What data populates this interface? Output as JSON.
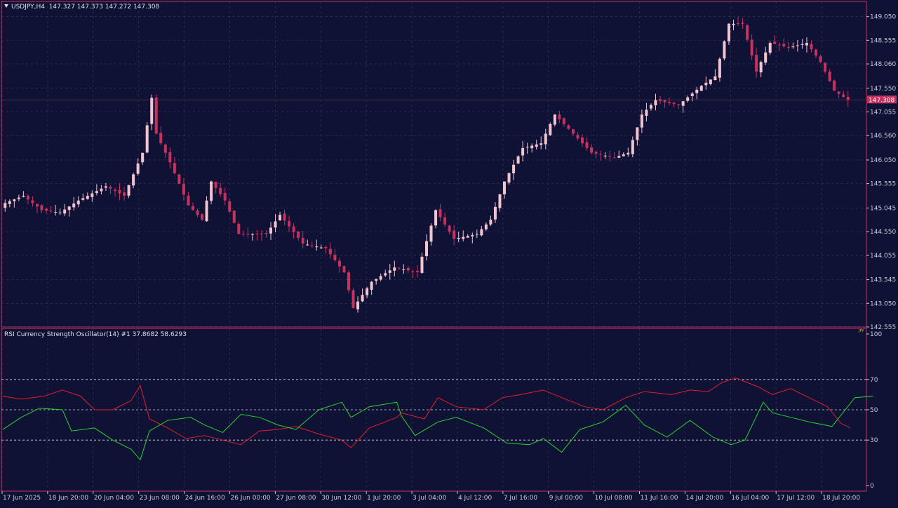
{
  "colors": {
    "background": "#0f1235",
    "grid": "#3a3d5e",
    "axis_text": "#c9c6d6",
    "bull_candle": "#f2c4cf",
    "bear_candle": "#c8305e",
    "frame": "#c8305e",
    "price_tag_bg": "#c8305e",
    "oscillator_red": "#e01f2a",
    "oscillator_green": "#28d22a",
    "level_line": "#d9d9e0"
  },
  "main_chart": {
    "symbol_label": "USDJPY,H4",
    "ohlc_label": "147.327 147.373 147.272 147.308",
    "dropdown_icon": "triangle-down-icon",
    "current_price": "147.308",
    "price_min": 142.555,
    "price_max": 149.28,
    "price_ticks": [
      "149.050",
      "148.555",
      "148.060",
      "147.550",
      "147.055",
      "146.560",
      "146.050",
      "145.555",
      "145.045",
      "144.550",
      "144.055",
      "143.545",
      "143.050",
      "142.555"
    ]
  },
  "time_axis": {
    "labels": [
      "17 Jun 2025",
      "18 Jun 20:00",
      "20 Jun 04:00",
      "23 Jun 08:00",
      "24 Jun 16:00",
      "26 Jun 00:00",
      "27 Jun 08:00",
      "30 Jun 12:00",
      "1 Jul 20:00",
      "3 Jul 04:00",
      "4 Jul 12:00",
      "7 Jul 16:00",
      "9 Jul 00:00",
      "10 Jul 08:00",
      "11 Jul 16:00",
      "14 Jul 20:00",
      "16 Jul 04:00",
      "17 Jul 12:00",
      "18 Jul 20:00"
    ]
  },
  "indicator": {
    "label": "RSI Currency Strength Oscillator(14) #1 37.8682 58.6293",
    "badge": "JPY",
    "scale_labels": [
      "100",
      "70",
      "50",
      "30",
      "0"
    ],
    "levels": [
      70,
      50,
      30
    ]
  },
  "chart_data": [
    {
      "type": "candlestick",
      "title": "USDJPY,H4",
      "y_range": [
        142.555,
        149.28
      ],
      "x_labels": [
        "17 Jun 2025",
        "18 Jun 20:00",
        "20 Jun 04:00",
        "23 Jun 08:00",
        "24 Jun 16:00",
        "26 Jun 00:00",
        "27 Jun 08:00",
        "30 Jun 12:00",
        "1 Jul 20:00",
        "3 Jul 04:00",
        "4 Jul 12:00",
        "7 Jul 16:00",
        "9 Jul 00:00",
        "10 Jul 08:00",
        "11 Jul 16:00",
        "14 Jul 20:00",
        "16 Jul 04:00",
        "17 Jul 12:00",
        "18 Jul 20:00"
      ],
      "close_path_keypoints": [
        [
          0,
          145.15
        ],
        [
          4,
          145.3
        ],
        [
          8,
          145.0
        ],
        [
          12,
          144.95
        ],
        [
          16,
          145.2
        ],
        [
          22,
          145.5
        ],
        [
          26,
          145.3
        ],
        [
          30,
          146.2
        ],
        [
          32,
          147.35
        ],
        [
          33,
          146.6
        ],
        [
          36,
          146.0
        ],
        [
          40,
          145.1
        ],
        [
          43,
          144.8
        ],
        [
          45,
          145.6
        ],
        [
          48,
          145.2
        ],
        [
          51,
          144.5
        ],
        [
          57,
          144.5
        ],
        [
          60,
          144.9
        ],
        [
          65,
          144.3
        ],
        [
          70,
          144.2
        ],
        [
          74,
          143.7
        ],
        [
          76,
          142.95
        ],
        [
          80,
          143.5
        ],
        [
          85,
          143.8
        ],
        [
          90,
          143.7
        ],
        [
          94,
          145.0
        ],
        [
          98,
          144.4
        ],
        [
          103,
          144.5
        ],
        [
          106,
          144.8
        ],
        [
          109,
          145.6
        ],
        [
          113,
          146.3
        ],
        [
          117,
          146.4
        ],
        [
          120,
          147.0
        ],
        [
          124,
          146.6
        ],
        [
          128,
          146.2
        ],
        [
          133,
          146.1
        ],
        [
          136,
          146.2
        ],
        [
          139,
          147.0
        ],
        [
          142,
          147.3
        ],
        [
          147,
          147.2
        ],
        [
          152,
          147.6
        ],
        [
          155,
          147.8
        ],
        [
          158,
          148.9
        ],
        [
          161,
          148.9
        ],
        [
          164,
          147.9
        ],
        [
          167,
          148.5
        ],
        [
          171,
          148.4
        ],
        [
          175,
          148.5
        ],
        [
          178,
          148.1
        ],
        [
          181,
          147.5
        ],
        [
          184,
          147.3
        ]
      ]
    },
    {
      "type": "line",
      "title": "RSI Currency Strength Oscillator(14) #1",
      "y_range": [
        0,
        100
      ],
      "levels": [
        70,
        50,
        30
      ],
      "series": [
        {
          "color": "#e01f2a",
          "last_value": 37.8682,
          "keypoints": [
            [
              0,
              59
            ],
            [
              4,
              57
            ],
            [
              9,
              59
            ],
            [
              13,
              63
            ],
            [
              17,
              59
            ],
            [
              20,
              50
            ],
            [
              24,
              50
            ],
            [
              28,
              56
            ],
            [
              30,
              66
            ],
            [
              32,
              44
            ],
            [
              36,
              38
            ],
            [
              40,
              31
            ],
            [
              44,
              33
            ],
            [
              48,
              30
            ],
            [
              52,
              27
            ],
            [
              56,
              36
            ],
            [
              60,
              37
            ],
            [
              64,
              39
            ],
            [
              69,
              34
            ],
            [
              74,
              30
            ],
            [
              76,
              25
            ],
            [
              80,
              38
            ],
            [
              86,
              45
            ],
            [
              87,
              48
            ],
            [
              92,
              44
            ],
            [
              95,
              58
            ],
            [
              99,
              52
            ],
            [
              105,
              50
            ],
            [
              109,
              58
            ],
            [
              113,
              60
            ],
            [
              118,
              63
            ],
            [
              122,
              58
            ],
            [
              127,
              52
            ],
            [
              131,
              50
            ],
            [
              136,
              58
            ],
            [
              140,
              62
            ],
            [
              146,
              60
            ],
            [
              150,
              63
            ],
            [
              154,
              62
            ],
            [
              157,
              68
            ],
            [
              160,
              71
            ],
            [
              165,
              65
            ],
            [
              168,
              60
            ],
            [
              172,
              64
            ],
            [
              176,
              58
            ],
            [
              180,
              52
            ],
            [
              183,
              41
            ],
            [
              185,
              38
            ]
          ]
        },
        {
          "color": "#28d22a",
          "last_value": 58.6293,
          "keypoints": [
            [
              0,
              37
            ],
            [
              4,
              45
            ],
            [
              8,
              51
            ],
            [
              13,
              50
            ],
            [
              15,
              36
            ],
            [
              20,
              38
            ],
            [
              24,
              30
            ],
            [
              28,
              24
            ],
            [
              30,
              17
            ],
            [
              32,
              36
            ],
            [
              36,
              43
            ],
            [
              41,
              45
            ],
            [
              44,
              40
            ],
            [
              48,
              35
            ],
            [
              52,
              47
            ],
            [
              56,
              45
            ],
            [
              60,
              40
            ],
            [
              64,
              37
            ],
            [
              69,
              50
            ],
            [
              74,
              55
            ],
            [
              76,
              45
            ],
            [
              80,
              52
            ],
            [
              86,
              55
            ],
            [
              87,
              46
            ],
            [
              90,
              33
            ],
            [
              95,
              42
            ],
            [
              99,
              45
            ],
            [
              105,
              38
            ],
            [
              110,
              28
            ],
            [
              115,
              27
            ],
            [
              118,
              31
            ],
            [
              122,
              22
            ],
            [
              126,
              37
            ],
            [
              131,
              42
            ],
            [
              136,
              53
            ],
            [
              140,
              40
            ],
            [
              145,
              32
            ],
            [
              150,
              43
            ],
            [
              155,
              32
            ],
            [
              159,
              27
            ],
            [
              162,
              30
            ],
            [
              166,
              55
            ],
            [
              168,
              48
            ],
            [
              172,
              45
            ],
            [
              176,
              42
            ],
            [
              181,
              39
            ],
            [
              186,
              58
            ],
            [
              190,
              59
            ]
          ]
        }
      ]
    }
  ]
}
